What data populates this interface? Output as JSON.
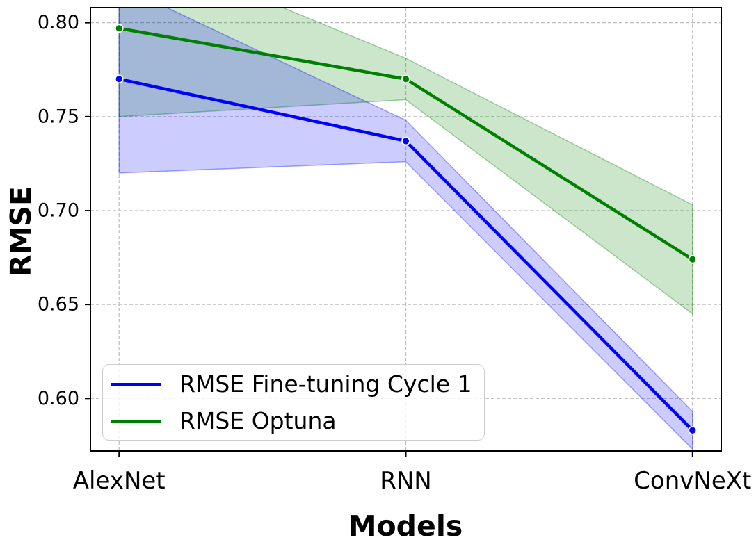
{
  "chart_data": {
    "type": "line",
    "title": "",
    "xlabel": "Models",
    "ylabel": "RMSE",
    "categories": [
      "AlexNet",
      "RNN",
      "ConvNeXt"
    ],
    "ylim": [
      0.572,
      0.808
    ],
    "yticks": [
      0.6,
      0.65,
      0.7,
      0.75,
      0.8
    ],
    "grid": true,
    "grid_style": "dashed",
    "legend_position": "lower-left",
    "series": [
      {
        "name": "RMSE Fine-tuning Cycle 1",
        "color": "#0000ff",
        "band_fill_opacity": 0.2,
        "values": [
          0.77,
          0.737,
          0.583
        ],
        "band_lower": [
          0.72,
          0.726,
          0.573
        ],
        "band_upper": [
          0.82,
          0.748,
          0.593
        ]
      },
      {
        "name": "RMSE Optuna",
        "color": "#008000",
        "band_fill_opacity": 0.2,
        "values": [
          0.797,
          0.77,
          0.674
        ],
        "band_lower": [
          0.75,
          0.759,
          0.645
        ],
        "band_upper": [
          0.844,
          0.781,
          0.703
        ]
      }
    ]
  }
}
